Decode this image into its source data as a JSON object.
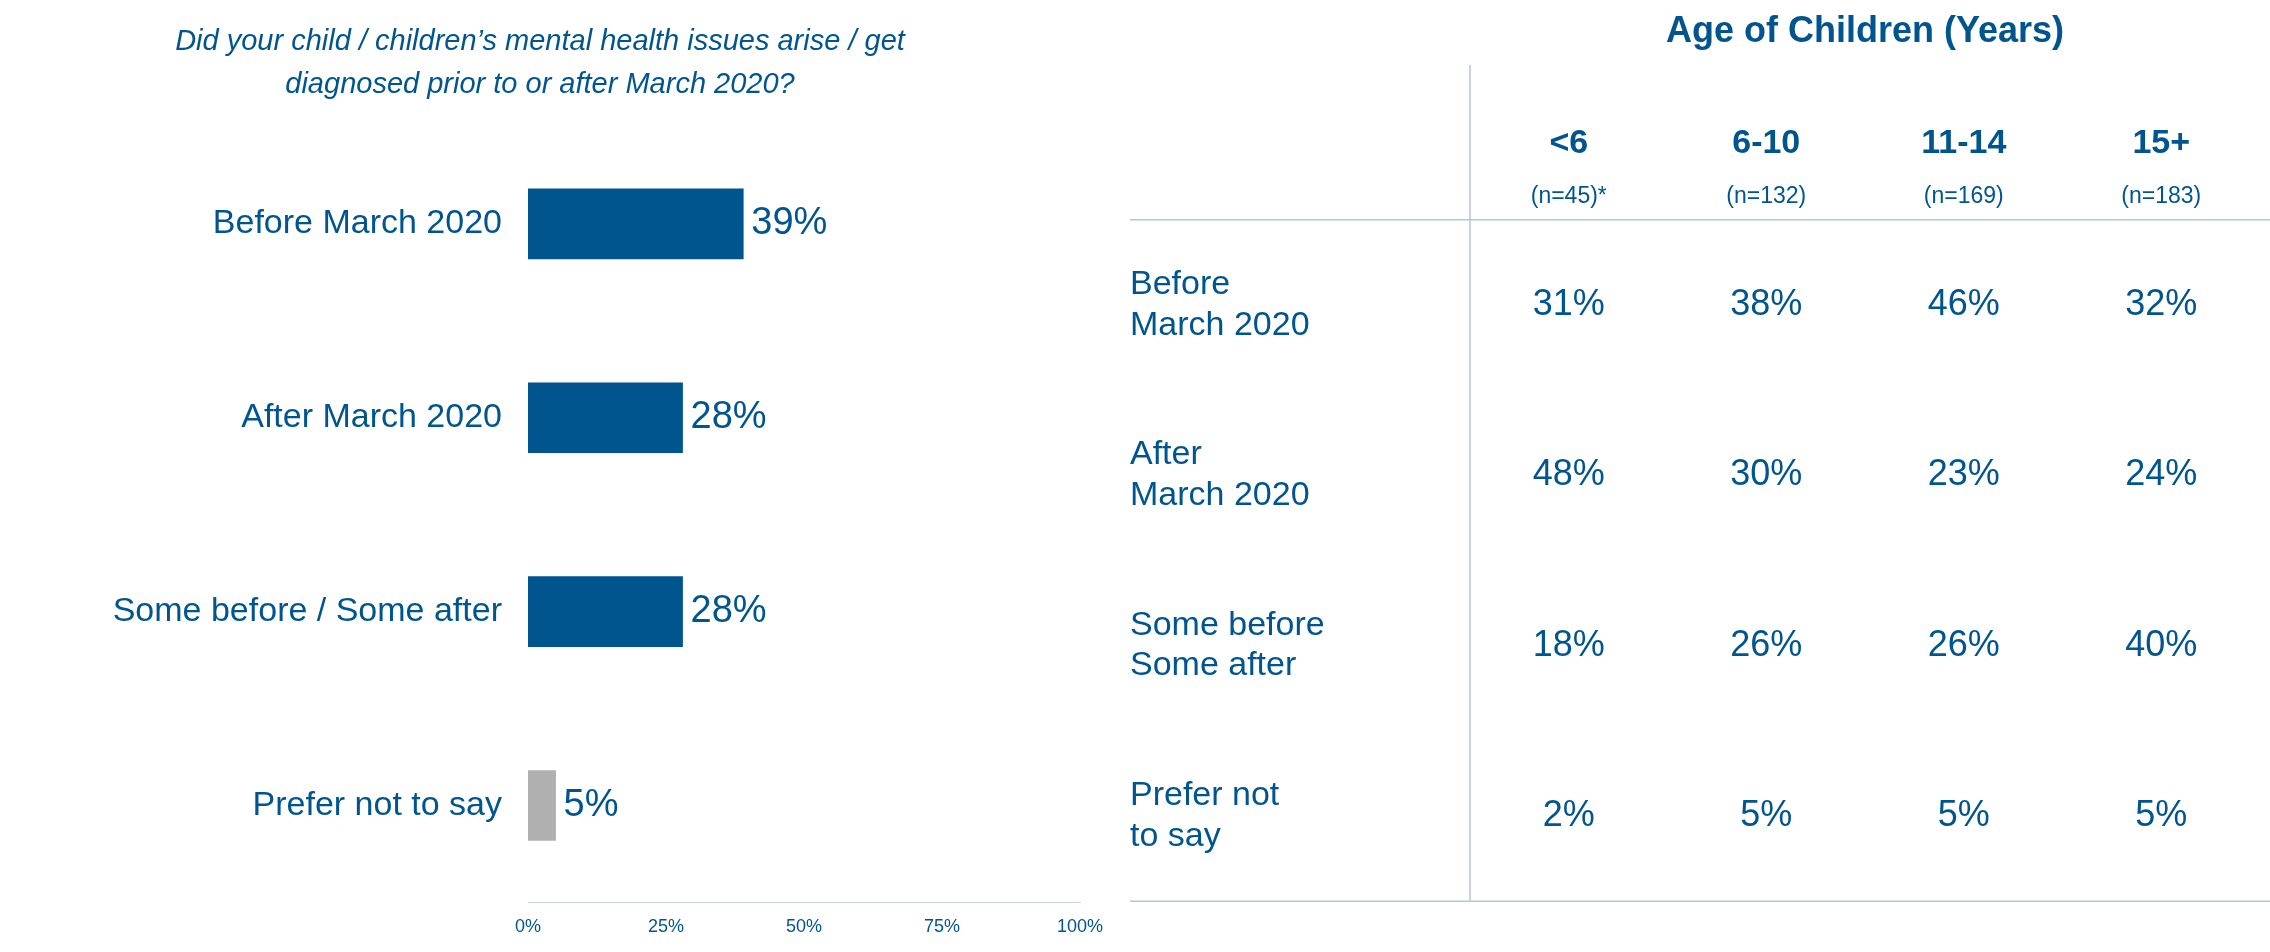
{
  "chart_data": [
    {
      "type": "bar",
      "orientation": "horizontal",
      "title": "Did your child / children’s mental health issues arise / get diagnosed prior to or after March 2020?",
      "categories": [
        "Before March 2020",
        "After March 2020",
        "Some before / Some after",
        "Prefer not to say"
      ],
      "values": [
        39,
        28,
        28,
        5
      ],
      "value_labels": [
        "39%",
        "28%",
        "28%",
        "5%"
      ],
      "colors": [
        "#00558f",
        "#00558f",
        "#00558f",
        "#b0b0b0"
      ],
      "xlim": [
        0,
        100
      ],
      "xticks": [
        {
          "value": 0,
          "label": "0%"
        },
        {
          "value": 25,
          "label": "25%"
        },
        {
          "value": 50,
          "label": "50%"
        },
        {
          "value": 75,
          "label": "75%"
        },
        {
          "value": 100,
          "label": "100%"
        }
      ],
      "grid": false,
      "legend": false
    },
    {
      "type": "heatmap",
      "title": "Age of Children (Years)",
      "categories": [
        "<6",
        "6-10",
        "11-14",
        "15+"
      ],
      "y_categories": [
        "Before March 2020",
        "After March 2020",
        "Some before Some after",
        "Prefer not to say"
      ],
      "cells": [
        [
          31,
          38,
          46,
          32
        ],
        [
          48,
          30,
          23,
          24
        ],
        [
          18,
          26,
          26,
          40
        ],
        [
          2,
          5,
          5,
          5
        ]
      ],
      "cell_labels": [
        [
          "31%",
          "38%",
          "46%",
          "32%"
        ],
        [
          "48%",
          "30%",
          "23%",
          "24%"
        ],
        [
          "18%",
          "26%",
          "26%",
          "40%"
        ],
        [
          "2%",
          "5%",
          "5%",
          "5%"
        ]
      ],
      "annotations": [
        "(n=45)*",
        "(n=132)",
        "(n=169)",
        "(n=183)"
      ]
    }
  ]
}
